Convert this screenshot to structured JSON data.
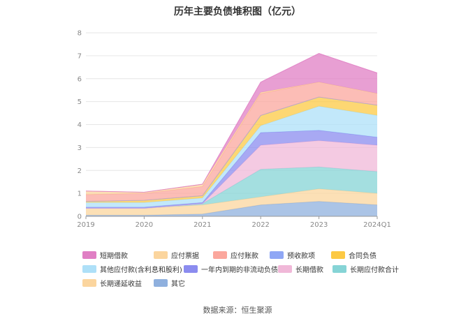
{
  "title": "历年主要负债堆积图（亿元）",
  "source_text": "数据来源：恒生聚源",
  "chart_data": {
    "type": "area",
    "title": "历年主要负债堆积图（亿元）",
    "stacked": true,
    "categories": [
      "2019",
      "2020",
      "2021",
      "2022",
      "2023",
      "2024Q1"
    ],
    "y_ticks": [
      "0",
      "1",
      "2",
      "3",
      "4",
      "5",
      "6",
      "7",
      "8"
    ],
    "ylim": [
      0,
      8
    ],
    "grid": true,
    "legend_position": "bottom",
    "series": [
      {
        "name": "其它",
        "color": "#8fb0de",
        "values": [
          0.05,
          0.05,
          0.1,
          0.5,
          0.65,
          0.5
        ]
      },
      {
        "name": "长期递延收益",
        "color": "#fbd59e",
        "values": [
          0.3,
          0.3,
          0.4,
          0.35,
          0.55,
          0.5
        ]
      },
      {
        "name": "长期应付款合计",
        "color": "#86d4d6",
        "values": [
          0.0,
          0.0,
          0.05,
          1.2,
          0.95,
          0.95
        ]
      },
      {
        "name": "长期借款",
        "color": "#f0b8d8",
        "values": [
          0.0,
          0.0,
          0.0,
          1.05,
          1.15,
          1.15
        ]
      },
      {
        "name": "一年内到期的非流动负债",
        "color": "#8b8cef",
        "values": [
          0.05,
          0.05,
          0.05,
          0.55,
          0.45,
          0.35
        ]
      },
      {
        "name": "其他应付款(含利息和股利)",
        "color": "#aee0f8",
        "values": [
          0.2,
          0.2,
          0.2,
          0.3,
          1.05,
          0.95
        ]
      },
      {
        "name": "合同负债",
        "color": "#fcc944",
        "values": [
          0.05,
          0.1,
          0.1,
          0.45,
          0.4,
          0.45
        ]
      },
      {
        "name": "预收款项",
        "color": "#8fa7f5",
        "values": [
          0.0,
          0.0,
          0.0,
          0.0,
          0.0,
          0.0
        ]
      },
      {
        "name": "应付账款",
        "color": "#fba79d",
        "values": [
          0.3,
          0.3,
          0.4,
          0.95,
          0.65,
          0.5
        ]
      },
      {
        "name": "应付票据",
        "color": "#fbd59e",
        "values": [
          0.15,
          0.05,
          0.1,
          0.05,
          0.0,
          0.0
        ]
      },
      {
        "name": "短期借款",
        "color": "#e07fc4",
        "values": [
          0.0,
          0.0,
          0.0,
          0.45,
          1.25,
          0.9
        ]
      }
    ],
    "legend_order": [
      "短期借款",
      "应付票据",
      "应付账款",
      "预收款项",
      "合同负债",
      "其他应付款(含利息和股利)",
      "一年内到期的非流动负债",
      "长期借款",
      "长期应付款合计",
      "长期递延收益",
      "其它"
    ]
  }
}
